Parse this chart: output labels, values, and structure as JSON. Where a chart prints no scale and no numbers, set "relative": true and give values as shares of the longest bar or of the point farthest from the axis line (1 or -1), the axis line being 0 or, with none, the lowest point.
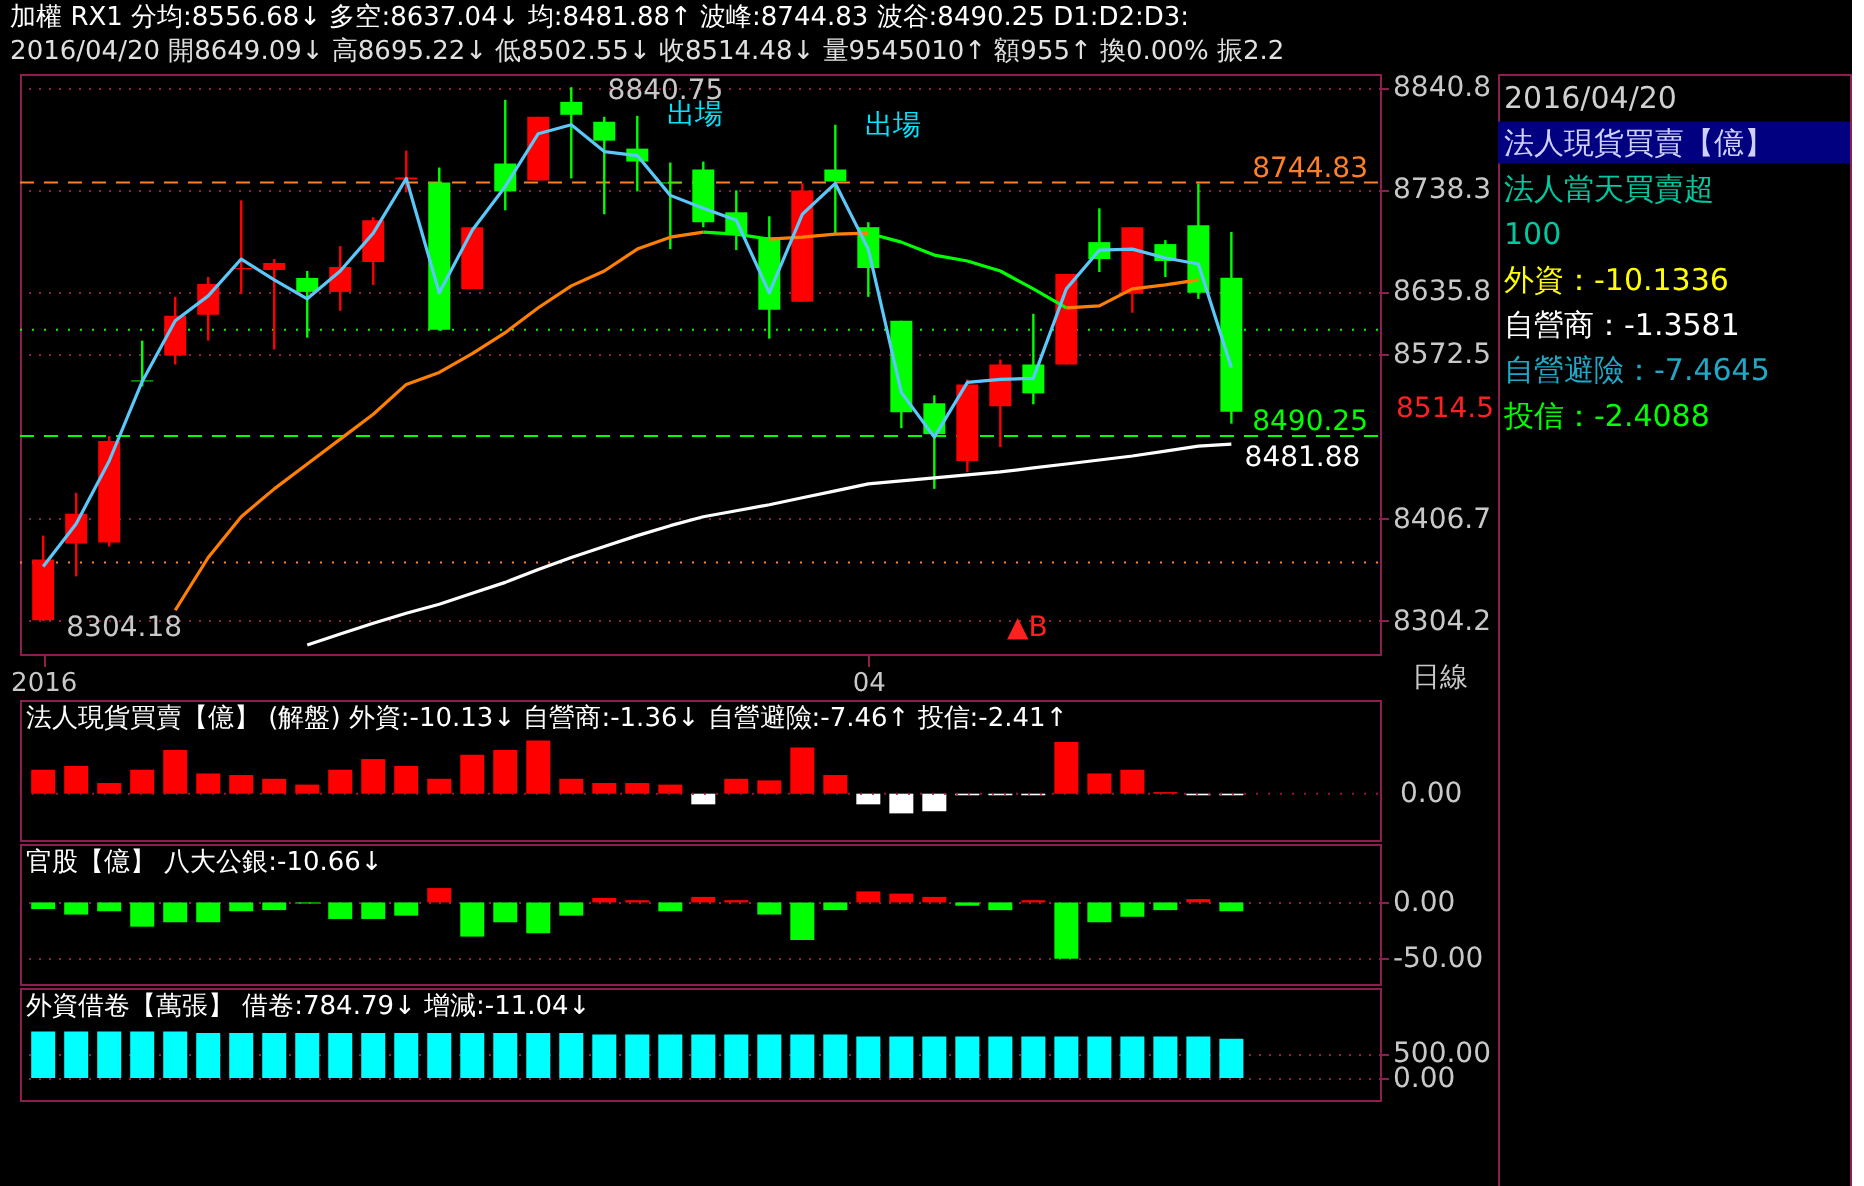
{
  "chart_data": [
    {
      "type": "candlestick",
      "title": "加權 RX1 分均:8556.68↓ 多空:8637.04↓ 均:8481.88↑ 波峰:8744.83 波谷:8490.25 D1:D2:D3:",
      "subtitle": "2016/04/20 開8649.09↓ 高8695.22↓ 低8502.55↓ 收8514.48↓ 量9545010↑ 額955↑ 換0.00% 振2.2",
      "categories": [
        "2016",
        null,
        null,
        null,
        null,
        null,
        null,
        null,
        null,
        null,
        null,
        null,
        null,
        null,
        null,
        null,
        null,
        null,
        null,
        null,
        null,
        null,
        null,
        null,
        null,
        "04",
        null,
        null,
        null,
        null,
        null,
        null,
        null,
        null,
        null,
        null,
        null
      ],
      "ohlc": [
        [
          8305,
          8390,
          8304.18,
          8366
        ],
        [
          8382,
          8433,
          8349,
          8412
        ],
        [
          8383,
          8490,
          8379,
          8485
        ],
        [
          8546,
          8586,
          8540,
          8545
        ],
        [
          8571,
          8630,
          8562,
          8611
        ],
        [
          8612,
          8650,
          8586,
          8643
        ],
        [
          8658,
          8727,
          8633,
          8659
        ],
        [
          8657,
          8668,
          8577,
          8664
        ],
        [
          8649,
          8656,
          8589,
          8635
        ],
        [
          8635,
          8681,
          8616,
          8660
        ],
        [
          8665,
          8710,
          8642,
          8707
        ],
        [
          8748,
          8777,
          8735,
          8750
        ],
        [
          8745,
          8760,
          8596,
          8597
        ],
        [
          8638,
          8700,
          8638,
          8700
        ],
        [
          8764,
          8828,
          8717,
          8736
        ],
        [
          8747,
          8811,
          8747,
          8811
        ],
        [
          8826,
          8840.75,
          8749,
          8813
        ],
        [
          8806,
          8811,
          8713,
          8787
        ],
        [
          8779,
          8812,
          8736,
          8766
        ],
        [
          8745,
          8765,
          8678,
          8744
        ],
        [
          8758,
          8766,
          8700,
          8705
        ],
        [
          8715,
          8737,
          8677,
          8692
        ],
        [
          8690,
          8711,
          8588,
          8617
        ],
        [
          8625,
          8744,
          8625,
          8737
        ],
        [
          8758,
          8803,
          8694,
          8746
        ],
        [
          8700,
          8705,
          8630,
          8659
        ],
        [
          8606,
          8606,
          8498,
          8514
        ],
        [
          8523,
          8531,
          8437,
          8492
        ],
        [
          8465,
          8547,
          8454,
          8542
        ],
        [
          8520,
          8567,
          8479,
          8562
        ],
        [
          8562,
          8613,
          8522,
          8533
        ],
        [
          8562,
          8653,
          8562,
          8653
        ],
        [
          8685,
          8719,
          8655,
          8668
        ],
        [
          8633,
          8700,
          8614,
          8700
        ],
        [
          8683,
          8687,
          8650,
          8666
        ],
        [
          8702,
          8744,
          8628,
          8634
        ],
        [
          8649.09,
          8695.22,
          8502.55,
          8514.48
        ]
      ],
      "colors": [
        "#ff0000",
        "#ff0000",
        "#ff0000",
        "#00ff00",
        "#ff0000",
        "#ff0000",
        "#ff0000",
        "#ff0000",
        "#00ff00",
        "#ff0000",
        "#ff0000",
        "#ff0000",
        "#00ff00",
        "#ff0000",
        "#00ff00",
        "#ff0000",
        "#00ff00",
        "#00ff00",
        "#00ff00",
        "#00ff00",
        "#00ff00",
        "#00ff00",
        "#00ff00",
        "#ff0000",
        "#00ff00",
        "#00ff00",
        "#00ff00",
        "#00ff00",
        "#ff0000",
        "#ff0000",
        "#00ff00",
        "#ff0000",
        "#00ff00",
        "#ff0000",
        "#00ff00",
        "#00ff00",
        "#00ff00"
      ],
      "series": [
        {
          "type": "line",
          "color": "#ffffff",
          "values": [
            null,
            null,
            null,
            null,
            null,
            null,
            null,
            null,
            8280,
            8291,
            8302,
            8312,
            8321,
            8332,
            8343,
            8356,
            8368,
            8379,
            8390,
            8400,
            8409,
            8415,
            8421,
            8428,
            8435,
            8442,
            8445,
            8448,
            8451,
            8454,
            8458,
            8462,
            8466,
            8470,
            8475,
            8480,
            8482
          ]
        },
        {
          "type": "line",
          "color": "#ff7f00",
          "values": [
            null,
            null,
            null,
            null,
            8315,
            8368,
            8409,
            8437,
            8462,
            8487,
            8512,
            8542,
            8554,
            8573,
            8594,
            8619,
            8641,
            8656,
            8678,
            8690,
            8695,
            null,
            8688,
            8690,
            8693,
            8694,
            null,
            null,
            null,
            null,
            null,
            8619,
            8621,
            8638,
            8642,
            8647,
            null
          ]
        },
        {
          "type": "line",
          "color": "#00ff00",
          "values": [
            null,
            null,
            null,
            null,
            null,
            null,
            null,
            null,
            null,
            null,
            null,
            null,
            null,
            null,
            null,
            null,
            null,
            null,
            null,
            null,
            8695,
            8693,
            8688,
            null,
            null,
            8694,
            8685,
            8672,
            8666,
            8656,
            8638,
            8619,
            null,
            null,
            null,
            null,
            null
          ]
        },
        {
          "type": "line",
          "color": "#5ac8fa",
          "values": [
            8359,
            8402,
            8465,
            8545,
            8606,
            8631,
            8668,
            8647,
            8628,
            8656,
            8694,
            8749,
            8634,
            8697,
            8741,
            8794,
            8803,
            8776,
            8772,
            8732,
            8719,
            8707,
            8634,
            8713,
            8744,
            8678,
            8534,
            8489,
            8544,
            8547,
            8548,
            8638,
            8677,
            8678,
            8669,
            8663,
            8559
          ]
        }
      ],
      "ylim": [
        8271,
        8854
      ],
      "yticks": [
        8840.8,
        8738.3,
        8635.8,
        8572.5,
        8406.7,
        8304.2
      ],
      "grid": "y",
      "ref_lines": [
        {
          "axis": "y",
          "value": 8744.83,
          "label": "8744.83",
          "color": "#ff7f27",
          "line_style": "dashed"
        },
        {
          "axis": "y",
          "value": 8490.25,
          "label": "8490.25",
          "color": "#00ff00",
          "line_style": "dashed"
        },
        {
          "axis": "y",
          "value": 8597,
          "color": "#00ff00",
          "line_style": "dotted"
        },
        {
          "axis": "y",
          "value": 8363,
          "color": "#ff7f27",
          "line_style": "dotted"
        }
      ],
      "annotations": [
        "8840.75",
        "8304.18",
        "出場",
        "出場",
        "▲B",
        {
          "text": "8481.88",
          "y": 8481.88
        },
        "8514.5",
        "日線"
      ]
    },
    {
      "type": "bar",
      "title": "法人現貨買賣【億】 (解盤) 外資:-10.13↓ 自營商:-1.36↓ 自營避險:-7.46↑ 投信:-2.41↑",
      "relative": true,
      "categories": [
        null,
        null,
        null,
        null,
        null,
        null,
        null,
        null,
        null,
        null,
        null,
        null,
        null,
        null,
        null,
        null,
        null,
        null,
        null,
        null,
        null,
        null,
        null,
        null,
        null,
        null,
        null,
        null,
        null,
        null,
        null,
        null,
        null,
        null,
        null,
        null,
        null
      ],
      "values": [
        0.45,
        0.52,
        0.2,
        0.45,
        0.82,
        0.38,
        0.35,
        0.28,
        0.17,
        0.45,
        0.65,
        0.52,
        0.28,
        0.73,
        0.82,
        1,
        0.28,
        0.2,
        0.2,
        0.17,
        -0.2,
        0.28,
        0.25,
        0.87,
        0.35,
        -0.2,
        -0.37,
        -0.33,
        -0.03,
        -0.03,
        -0.03,
        0.97,
        0.38,
        0.45,
        0.03,
        -0.03,
        -0.03
      ],
      "colors": [
        "#ff0000",
        "#ff0000",
        "#ff0000",
        "#ff0000",
        "#ff0000",
        "#ff0000",
        "#ff0000",
        "#ff0000",
        "#ff0000",
        "#ff0000",
        "#ff0000",
        "#ff0000",
        "#ff0000",
        "#ff0000",
        "#ff0000",
        "#ff0000",
        "#ff0000",
        "#ff0000",
        "#ff0000",
        "#ff0000",
        "#ffffff",
        "#ff0000",
        "#ff0000",
        "#ff0000",
        "#ff0000",
        "#ffffff",
        "#ffffff",
        "#ffffff",
        "#ffffff",
        "#ffffff",
        "#ffffff",
        "#ff0000",
        "#ff0000",
        "#ff0000",
        "#ff0000",
        "#ffffff",
        "#ffffff"
      ],
      "ref_lines": [
        {
          "axis": "y",
          "value": 0,
          "label": "0.00",
          "color": "#a01040",
          "line_style": "dotted"
        }
      ]
    },
    {
      "type": "bar",
      "title": "官股【億】 八大公銀:-10.66↓",
      "categories": [
        null,
        null,
        null,
        null,
        null,
        null,
        null,
        null,
        null,
        null,
        null,
        null,
        null,
        null,
        null,
        null,
        null,
        null,
        null,
        null,
        null,
        null,
        null,
        null,
        null,
        null,
        null,
        null,
        null,
        null,
        null,
        null,
        null,
        null,
        null,
        null,
        null
      ],
      "values": [
        -6,
        -11,
        -8,
        -22,
        -18,
        -18,
        -8,
        -7,
        -1,
        -15,
        -15,
        -12,
        13,
        -31,
        -18,
        -28,
        -12,
        4,
        2,
        -8,
        5,
        2,
        -11,
        -34,
        -7,
        10,
        8,
        5,
        -3,
        -7,
        2,
        -51,
        -18,
        -13,
        -7,
        3,
        -8
      ],
      "colors": [
        "#00ff00",
        "#00ff00",
        "#00ff00",
        "#00ff00",
        "#00ff00",
        "#00ff00",
        "#00ff00",
        "#00ff00",
        "#00ff00",
        "#00ff00",
        "#00ff00",
        "#00ff00",
        "#ff0000",
        "#00ff00",
        "#00ff00",
        "#00ff00",
        "#00ff00",
        "#ff0000",
        "#ff0000",
        "#00ff00",
        "#ff0000",
        "#ff0000",
        "#00ff00",
        "#00ff00",
        "#00ff00",
        "#ff0000",
        "#ff0000",
        "#ff0000",
        "#00ff00",
        "#00ff00",
        "#ff0000",
        "#00ff00",
        "#00ff00",
        "#00ff00",
        "#00ff00",
        "#ff0000",
        "#00ff00"
      ],
      "ylim": [
        -74,
        53
      ],
      "yticks": [
        {
          "value": 0,
          "label": "0.00"
        },
        {
          "value": -50,
          "label": "-50.00"
        }
      ],
      "grid": "y"
    },
    {
      "type": "bar",
      "title": "外資借卷【萬張】 借卷:784.79↓ 增減:-11.04↓",
      "categories": [
        null,
        null,
        null,
        null,
        null,
        null,
        null,
        null,
        null,
        null,
        null,
        null,
        null,
        null,
        null,
        null,
        null,
        null,
        null,
        null,
        null,
        null,
        null,
        null,
        null,
        null,
        null,
        null,
        null,
        null,
        null,
        null,
        null,
        null,
        null,
        null,
        null
      ],
      "values": [
        930,
        930,
        930,
        930,
        930,
        900,
        900,
        900,
        900,
        900,
        900,
        900,
        900,
        900,
        900,
        900,
        900,
        870,
        870,
        870,
        870,
        870,
        870,
        870,
        870,
        830,
        830,
        830,
        830,
        830,
        830,
        830,
        830,
        830,
        830,
        830,
        785
      ],
      "color": "#00ffff",
      "ylim": [
        -440,
        1800
      ],
      "yticks": [
        {
          "value": 500,
          "label": "500.00"
        },
        {
          "value": 0,
          "label": "0.00"
        }
      ],
      "grid": "y"
    },
    {
      "type": "other",
      "annotations": [
        "2016/04/20",
        "法人現貨買賣【億】",
        "法人當天買賣超",
        "100",
        "外資：-10.1336",
        "自營商：-1.3581",
        "自營避險：-7.4645",
        "投信：-2.4088"
      ]
    }
  ]
}
